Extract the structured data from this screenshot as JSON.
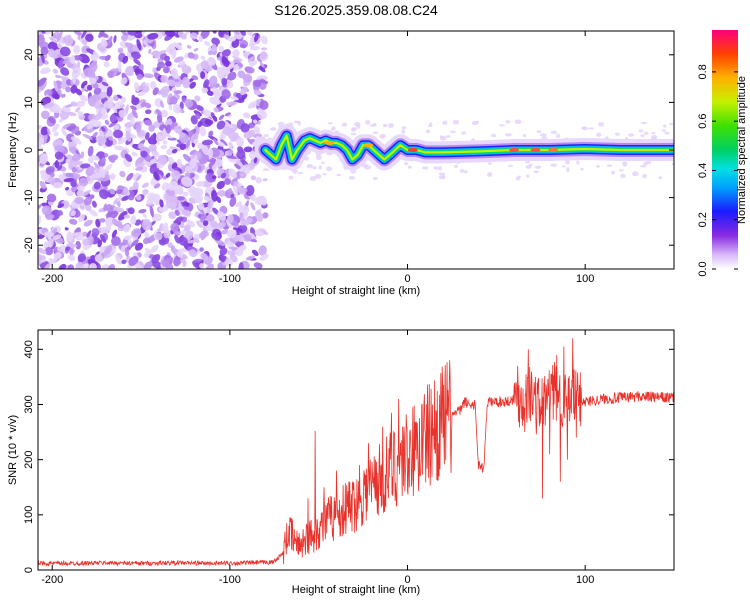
{
  "chart_data": [
    {
      "type": "heatmap",
      "title": "S126.2025.359.08.08.C24",
      "xlabel": "Height of straight line (km)",
      "ylabel": "Frequency (Hz)",
      "xlim": [
        -208,
        150
      ],
      "ylim": [
        -25,
        25
      ],
      "xticks": [
        -200,
        -100,
        0,
        100
      ],
      "yticks": [
        -20,
        -10,
        0,
        10,
        20
      ],
      "noise_region": [
        -208,
        -80
      ],
      "ridge": {
        "x": [
          -80,
          -77,
          -74,
          -71,
          -68,
          -65,
          -62,
          -58,
          -55,
          -52,
          -49,
          -46,
          -43,
          -40,
          -37,
          -34,
          -31,
          -28,
          -25,
          -22,
          -19,
          -16,
          -13,
          -10,
          -7,
          -4,
          0,
          5,
          10,
          20,
          40,
          60,
          80,
          100,
          120,
          150
        ],
        "y": [
          0,
          -1,
          -2,
          1,
          3,
          -2,
          0,
          2,
          2.5,
          2,
          1.5,
          2,
          1.5,
          1.5,
          1,
          0,
          -2,
          -1,
          1,
          1,
          0,
          -1,
          -2,
          -1,
          0,
          1,
          0,
          0,
          -0.5,
          -0.5,
          -0.3,
          0,
          0,
          0.2,
          0,
          0
        ]
      },
      "colorbar": {
        "label": "Normalized spectral amplitude",
        "ticks": [
          0.0,
          0.2,
          0.4,
          0.6,
          0.8
        ],
        "range": [
          0,
          0.97
        ]
      }
    },
    {
      "type": "line",
      "title": "",
      "xlabel": "Height of straight line (km)",
      "ylabel": "SNR (10 * v/v)",
      "xlim": [
        -208,
        150
      ],
      "ylim": [
        0,
        435
      ],
      "xticks": [
        -200,
        -100,
        0,
        100
      ],
      "yticks": [
        0,
        100,
        200,
        300,
        400
      ],
      "color": "#e8322b",
      "x": [
        -208,
        -190,
        -170,
        -150,
        -130,
        -110,
        -90,
        -76,
        -70,
        -67,
        -62,
        -58,
        -55,
        -50,
        -45,
        -40,
        -35,
        -30,
        -25,
        -20,
        -15,
        -10,
        -5,
        0,
        5,
        10,
        15,
        20,
        25,
        30,
        32,
        35,
        38,
        40,
        43,
        45,
        50,
        55,
        60,
        65,
        70,
        72,
        75,
        78,
        80,
        85,
        90,
        95,
        100,
        110,
        120,
        130,
        140,
        150
      ],
      "y": [
        12,
        12,
        13,
        12,
        13,
        12,
        13,
        14,
        30,
        70,
        45,
        55,
        60,
        75,
        90,
        100,
        110,
        120,
        140,
        155,
        165,
        180,
        195,
        210,
        215,
        240,
        255,
        270,
        280,
        290,
        305,
        300,
        300,
        190,
        185,
        305,
        305,
        305,
        310,
        310,
        320,
        300,
        300,
        305,
        325,
        320,
        300,
        315,
        305,
        310,
        312,
        315,
        313,
        312
      ],
      "spikes": [
        {
          "x": -68,
          "y": 85
        },
        {
          "x": -56,
          "y": 130
        },
        {
          "x": -52,
          "y": 252
        },
        {
          "x": -47,
          "y": 150
        },
        {
          "x": -40,
          "y": 180
        },
        {
          "x": -33,
          "y": 160
        },
        {
          "x": -27,
          "y": 190
        },
        {
          "x": -22,
          "y": 230
        },
        {
          "x": -18,
          "y": 200
        },
        {
          "x": -14,
          "y": 260
        },
        {
          "x": -9,
          "y": 285
        },
        {
          "x": -5,
          "y": 310
        },
        {
          "x": -2,
          "y": 260
        },
        {
          "x": 3,
          "y": 295
        },
        {
          "x": 8,
          "y": 300
        },
        {
          "x": 14,
          "y": 300
        },
        {
          "x": 62,
          "y": 370
        },
        {
          "x": 68,
          "y": 400
        },
        {
          "x": 72,
          "y": 350
        },
        {
          "x": 76,
          "y": 435
        },
        {
          "x": 80,
          "y": 415
        },
        {
          "x": 84,
          "y": 390
        },
        {
          "x": 88,
          "y": 405
        },
        {
          "x": 93,
          "y": 420
        }
      ],
      "dips": [
        {
          "x": 20,
          "y": 240
        },
        {
          "x": 66,
          "y": 250
        },
        {
          "x": 76,
          "y": 130
        },
        {
          "x": 80,
          "y": 210
        },
        {
          "x": 86,
          "y": 160
        },
        {
          "x": 90,
          "y": 200
        },
        {
          "x": 95,
          "y": 240
        }
      ]
    }
  ]
}
